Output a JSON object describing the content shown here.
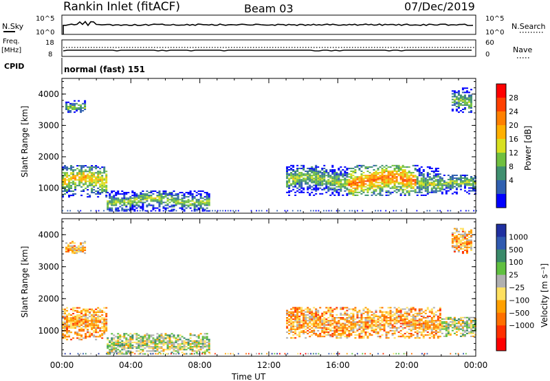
{
  "header": {
    "title": "Rankin Inlet (fitACF)",
    "beam": "Beam 03",
    "date": "07/Dec/2019"
  },
  "panels": {
    "nsky_label": "N.Sky",
    "nsky_ticks": [
      "10^5",
      "10^0"
    ],
    "nsearch_label": "N.Search",
    "nsearch_ticks": [
      "10^5",
      "10^0"
    ],
    "freq_label": "Freq.",
    "freq_unit": "[MHz]",
    "freq_ticks": [
      "18",
      "8"
    ],
    "nave_label": "Nave",
    "nave_ticks": [
      "60",
      "0"
    ],
    "cpid_label": "CPID",
    "cpid_value": "normal (fast) 151"
  },
  "chart_data": [
    {
      "type": "heatmap",
      "name": "power",
      "ylabel": "Slant Range [km]",
      "yticks": [
        1000,
        2000,
        3000,
        4000
      ],
      "ylim": [
        200,
        4500
      ],
      "xlim": [
        0,
        24
      ],
      "xticks": [
        "00:00",
        "04:00",
        "08:00",
        "12:00",
        "16:00",
        "20:00",
        "00:00"
      ],
      "colorbar": {
        "label": "Power [dB]",
        "ticks": [
          "28",
          "24",
          "20",
          "16",
          "12",
          "8",
          "4"
        ],
        "colors": [
          "#ff0000",
          "#ff4000",
          "#ff8000",
          "#ffb000",
          "#d8e020",
          "#70c040",
          "#409070",
          "#3060b0",
          "#0000ff"
        ]
      },
      "echo_regions": [
        {
          "x": [
            0.0,
            2.6
          ],
          "y": [
            700,
            1700
          ],
          "value": "16-28"
        },
        {
          "x": [
            2.6,
            8.5
          ],
          "y": [
            250,
            900
          ],
          "value": "8-24"
        },
        {
          "x": [
            13.0,
            22.0
          ],
          "y": [
            750,
            1700
          ],
          "value": "12-28"
        },
        {
          "x": [
            22.0,
            24.0
          ],
          "y": [
            800,
            1400
          ],
          "value": "8-24"
        },
        {
          "x": [
            0.2,
            1.3
          ],
          "y": [
            3400,
            3800
          ],
          "value": "4-12"
        },
        {
          "x": [
            22.6,
            23.8
          ],
          "y": [
            3400,
            4200
          ],
          "value": "4-12"
        }
      ]
    },
    {
      "type": "heatmap",
      "name": "velocity",
      "ylabel": "Slant Range [km]",
      "yticks": [
        1000,
        2000,
        3000,
        4000
      ],
      "ylim": [
        200,
        4500
      ],
      "xlim": [
        0,
        24
      ],
      "xlabel": "Time UT",
      "xticks": [
        "00:00",
        "04:00",
        "08:00",
        "12:00",
        "16:00",
        "20:00",
        "00:00"
      ],
      "colorbar": {
        "label": "Velocity [m s⁻¹]",
        "ticks": [
          "1000",
          "500",
          "100",
          "25",
          "−25",
          "−100",
          "−500",
          "−1000"
        ],
        "colors": [
          "#2030a0",
          "#305ab0",
          "#3a8a6a",
          "#60c040",
          "#b0b0b0",
          "#ffe060",
          "#ffa000",
          "#ff7000",
          "#ff3000",
          "#ff0000"
        ]
      },
      "echo_regions": [
        {
          "x": [
            0.0,
            2.6
          ],
          "y": [
            700,
            1700
          ],
          "value": "-500-100"
        },
        {
          "x": [
            2.6,
            8.5
          ],
          "y": [
            250,
            900
          ],
          "value": "-100-25"
        },
        {
          "x": [
            13.0,
            22.0
          ],
          "y": [
            750,
            1700
          ],
          "value": "-500-100"
        },
        {
          "x": [
            22.0,
            24.0
          ],
          "y": [
            800,
            1400
          ],
          "value": "-100-100"
        },
        {
          "x": [
            0.2,
            1.3
          ],
          "y": [
            3400,
            3800
          ],
          "value": "-100-25"
        },
        {
          "x": [
            22.6,
            23.8
          ],
          "y": [
            3400,
            4200
          ],
          "value": "-500-100"
        }
      ]
    }
  ]
}
